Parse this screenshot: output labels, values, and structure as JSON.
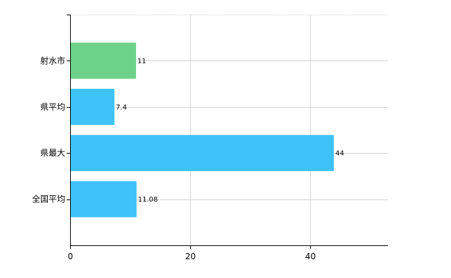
{
  "chart_data": {
    "type": "bar",
    "orientation": "horizontal",
    "categories": [
      "射水市",
      "県平均",
      "県最大",
      "全国平均"
    ],
    "values": [
      11,
      7.4,
      44,
      11.08
    ],
    "data_labels": [
      "11",
      "7.4",
      "44",
      "11.08"
    ],
    "bar_colors": [
      "#6cd287",
      "#3ec3f8",
      "#3ec3f8",
      "#3ec3f8"
    ],
    "xlim": [
      0,
      53
    ],
    "xticks": [
      0,
      20,
      40
    ],
    "xtick_labels": [
      "0",
      "20",
      "40"
    ],
    "grid": true,
    "title": "",
    "xlabel": "",
    "ylabel": ""
  },
  "colors": {
    "highlight": "#6cd287",
    "default": "#3ec3f8",
    "grid": "#d3d3d3",
    "axis": "#000000"
  }
}
